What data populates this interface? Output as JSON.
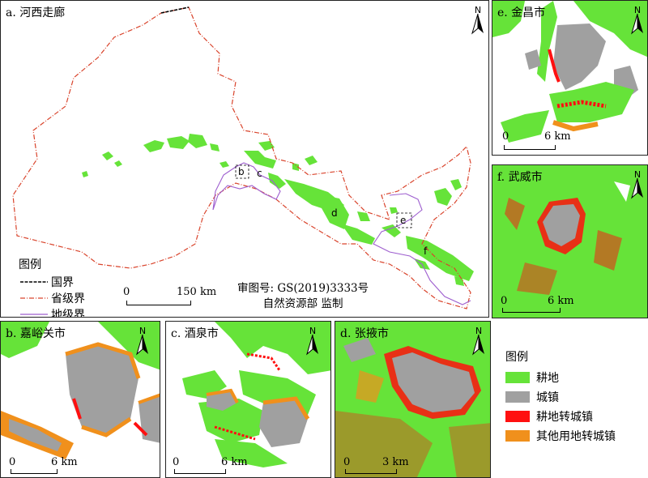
{
  "map_a": {
    "title": "a. 河西走廊",
    "legend_title": "图例",
    "legend": [
      "国界",
      "省级界",
      "地级界"
    ],
    "scale_zero": "0",
    "scale_end": "150 km",
    "review_no": "审图号: GS(2019)3333号",
    "review_by": "自然资源部  监制",
    "inset_labels": [
      "b",
      "c",
      "d",
      "e",
      "f"
    ]
  },
  "panels": {
    "e": {
      "title": "e. 金昌市",
      "scale_zero": "0",
      "scale_end": "6 km"
    },
    "f": {
      "title": "f. 武威市",
      "scale_zero": "0",
      "scale_end": "6 km"
    },
    "b": {
      "title": "b. 嘉峪关市",
      "scale_zero": "0",
      "scale_end": "6 km"
    },
    "c": {
      "title": "c. 酒泉市",
      "scale_zero": "0",
      "scale_end": "6 km"
    },
    "d": {
      "title": "d. 张掖市",
      "scale_zero": "0",
      "scale_end": "3 km"
    }
  },
  "north_label": "N",
  "legend": {
    "title": "图例",
    "items": [
      {
        "label": "耕地",
        "color": "#66e339"
      },
      {
        "label": "城镇",
        "color": "#a0a0a0"
      },
      {
        "label": "耕地转城镇",
        "color": "#ff1010"
      },
      {
        "label": "其他用地转城镇",
        "color": "#f0901c"
      }
    ]
  },
  "colors": {
    "national_border": "#000000",
    "provincial_border": "#d9442c",
    "prefecture_border": "#9e5fcf"
  }
}
